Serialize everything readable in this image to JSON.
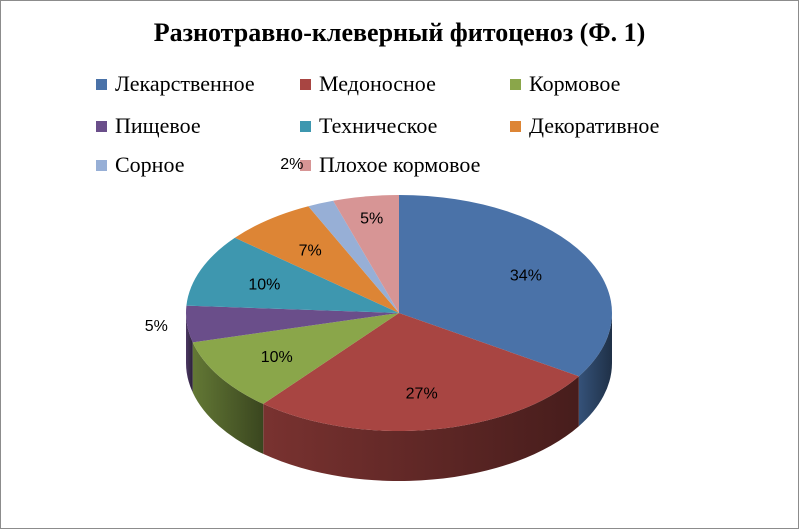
{
  "chart_data": {
    "type": "pie",
    "title": "Разнотравно-клеверный фитоценоз (Ф. 1)",
    "legend_position": "top",
    "three_d": true,
    "slices": [
      {
        "label": "Лекарственное",
        "value": 34,
        "value_label": "34%",
        "color": "#4A72A8"
      },
      {
        "label": "Медоносное",
        "value": 27,
        "value_label": "27%",
        "color": "#A84542"
      },
      {
        "label": "Кормовое",
        "value": 10,
        "value_label": "10%",
        "color": "#8AA64A"
      },
      {
        "label": "Пищевое",
        "value": 5,
        "value_label": "5%",
        "color": "#6A4E8A"
      },
      {
        "label": "Техническое",
        "value": 10,
        "value_label": "10%",
        "color": "#3E97AF"
      },
      {
        "label": "Декоративное",
        "value": 7,
        "value_label": "7%",
        "color": "#DD8535"
      },
      {
        "label": "Сорное",
        "value": 2,
        "value_label": "2%",
        "color": "#97AFD6"
      },
      {
        "label": "Плохое кормовое",
        "value": 5,
        "value_label": "5%",
        "color": "#D79595"
      }
    ]
  }
}
